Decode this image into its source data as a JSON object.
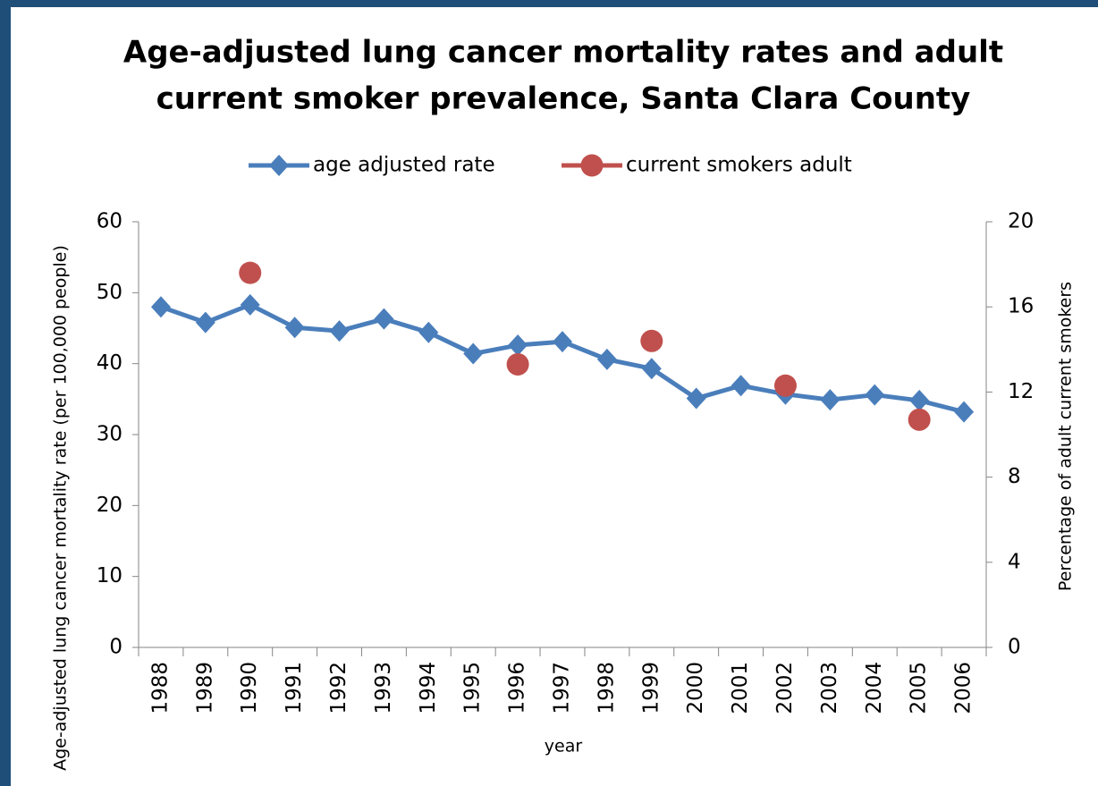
{
  "chart_data": {
    "type": "line",
    "title": [
      "Age-adjusted lung cancer mortality rates and adult",
      "current smoker prevalence, Santa Clara County"
    ],
    "x_label": "year",
    "y_label": "Age-adjusted lung cancer mortality rate (per 100,000 people)",
    "y2_label": "Percentage of adult current smokers",
    "categories": [
      "1988",
      "1989",
      "1990",
      "1991",
      "1992",
      "1993",
      "1994",
      "1995",
      "1996",
      "1997",
      "1998",
      "1999",
      "2000",
      "2001",
      "2002",
      "2003",
      "2004",
      "2005",
      "2006"
    ],
    "series": [
      {
        "name": "age adjusted rate",
        "color": "#4a7ebb",
        "marker": "diamond",
        "values": [
          48.0,
          45.8,
          48.3,
          45.1,
          44.6,
          46.3,
          44.4,
          41.4,
          42.6,
          43.1,
          40.6,
          39.3,
          35.1,
          36.9,
          35.7,
          34.9,
          35.6,
          34.8,
          33.2
        ]
      },
      {
        "name": "current smokers adult",
        "color": "#c0504d",
        "marker": "circle",
        "axis": "y2",
        "values": [
          null,
          null,
          17.6,
          null,
          null,
          null,
          null,
          null,
          13.3,
          null,
          null,
          14.4,
          null,
          null,
          12.3,
          null,
          null,
          10.7,
          null
        ]
      }
    ],
    "ylim": [
      0,
      60
    ],
    "yticks": [
      0,
      10,
      20,
      30,
      40,
      50,
      60
    ],
    "y2lim": [
      0,
      20
    ],
    "y2ticks": [
      0,
      4,
      8,
      12,
      16,
      20
    ],
    "legend": "top",
    "grid": false
  }
}
